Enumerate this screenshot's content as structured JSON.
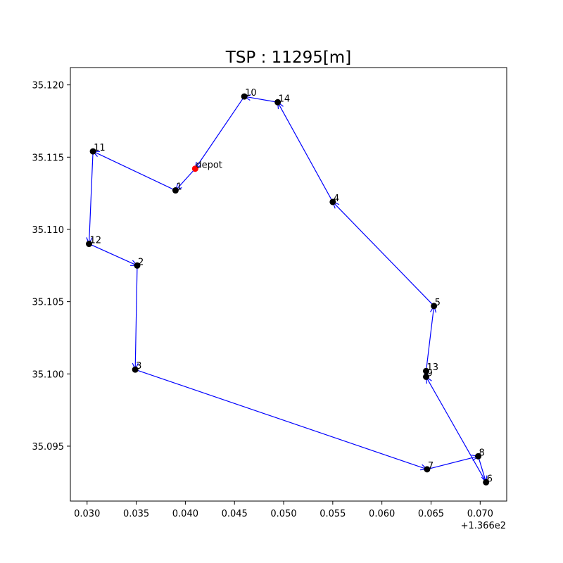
{
  "chart_data": {
    "type": "line",
    "title": "TSP : 11295[m]",
    "xlabel": "",
    "ylabel": "",
    "x_offset_label": "+1.366e2",
    "xlim": [
      0.0283,
      0.0727
    ],
    "ylim": [
      35.0912,
      35.1212
    ],
    "x_tick_labels": [
      "0.030",
      "0.035",
      "0.040",
      "0.045",
      "0.050",
      "0.055",
      "0.060",
      "0.065",
      "0.070"
    ],
    "y_tick_labels": [
      "35.095",
      "35.100",
      "35.105",
      "35.110",
      "35.115",
      "35.120"
    ],
    "grid": false,
    "colors": {
      "route": "#0000ff",
      "node": "#000000",
      "depot": "#ff0000"
    },
    "points": [
      {
        "label": "depot",
        "x": 0.041,
        "y": 35.1142,
        "depot": true
      },
      {
        "label": "1",
        "x": 0.039,
        "y": 35.1127
      },
      {
        "label": "2",
        "x": 0.0351,
        "y": 35.1075
      },
      {
        "label": "3",
        "x": 0.0349,
        "y": 35.1003
      },
      {
        "label": "4",
        "x": 0.055,
        "y": 35.1119
      },
      {
        "label": "5",
        "x": 0.0653,
        "y": 35.1047
      },
      {
        "label": "6",
        "x": 0.0706,
        "y": 35.0925
      },
      {
        "label": "7",
        "x": 0.0646,
        "y": 35.0934
      },
      {
        "label": "8",
        "x": 0.0698,
        "y": 35.0943
      },
      {
        "label": "9",
        "x": 0.0645,
        "y": 35.0998
      },
      {
        "label": "10",
        "x": 0.046,
        "y": 35.1192
      },
      {
        "label": "11",
        "x": 0.0306,
        "y": 35.1154
      },
      {
        "label": "12",
        "x": 0.0302,
        "y": 35.109
      },
      {
        "label": "13",
        "x": 0.0645,
        "y": 35.1002
      },
      {
        "label": "14",
        "x": 0.0494,
        "y": 35.1188
      }
    ],
    "route": [
      "depot",
      "1",
      "11",
      "12",
      "2",
      "3",
      "7",
      "8",
      "6",
      "9",
      "13",
      "5",
      "4",
      "14",
      "10",
      "depot"
    ]
  }
}
